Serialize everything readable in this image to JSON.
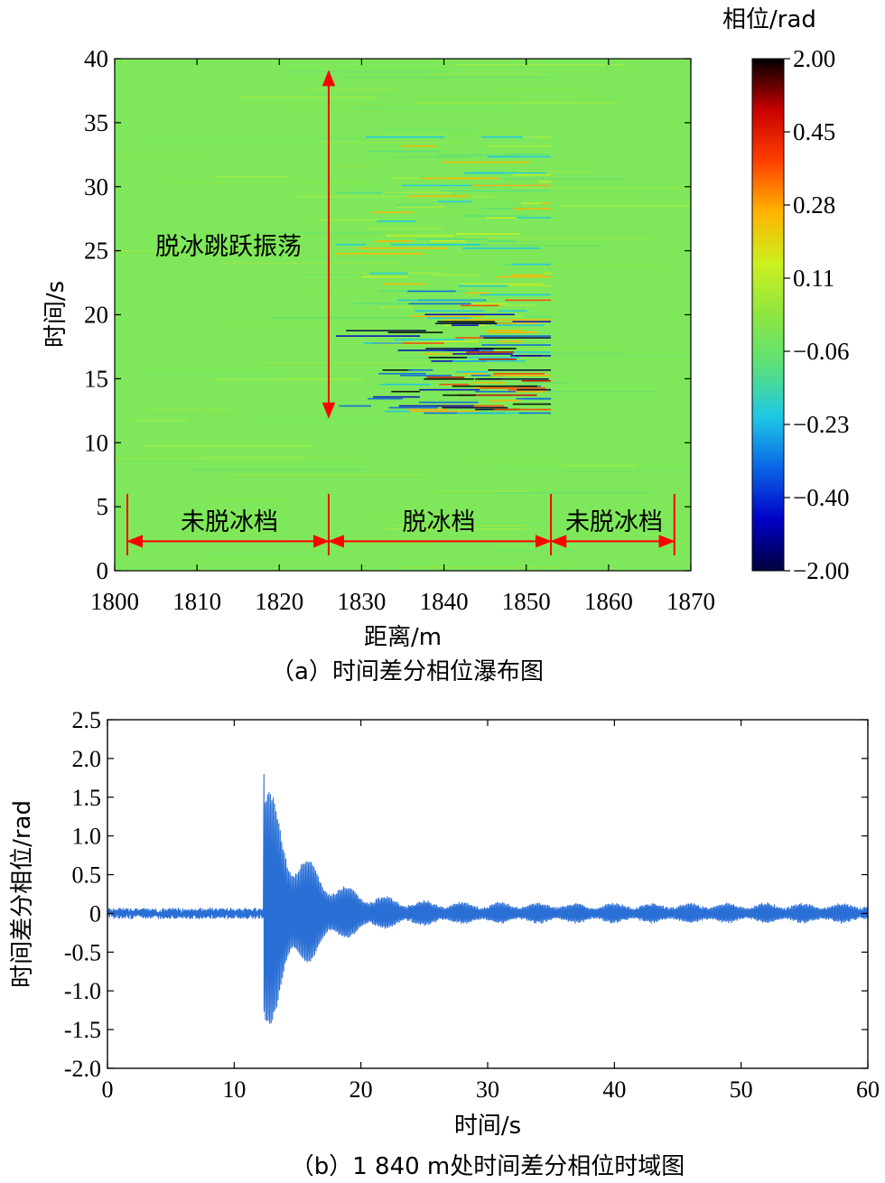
{
  "chart_data": [
    {
      "type": "heatmap",
      "caption": "（a）时间差分相位瀑布图",
      "xlabel": "距离/m",
      "ylabel": "时间/s",
      "xlim": [
        1800,
        1870
      ],
      "ylim": [
        0,
        40
      ],
      "x_ticks": [
        "1800",
        "1810",
        "1820",
        "1830",
        "1840",
        "1850",
        "1860",
        "1870"
      ],
      "y_ticks": [
        "0",
        "5",
        "10",
        "15",
        "20",
        "25",
        "30",
        "35",
        "40"
      ],
      "colorbar": {
        "title": "相位/rad",
        "tick_labels": [
          "2.00",
          "0.45",
          "0.28",
          "0.11",
          "−0.06",
          "−0.23",
          "−0.40",
          "−2.00"
        ],
        "colors": [
          "#00003c",
          "#0000c8",
          "#0a64e6",
          "#1ec8e6",
          "#5ae07a",
          "#8ee640",
          "#ccf01e",
          "#ffb400",
          "#ff4000",
          "#c80000",
          "#000000"
        ]
      },
      "background_color": "#7ee85a",
      "annotations": {
        "vertical_label": "脱冰跳跃振荡",
        "segments": [
          "未脱冰档",
          "脱冰档",
          "未脱冰档"
        ],
        "segment_x": [
          1800,
          1826,
          1853,
          1868
        ],
        "vertical_arrow_x": 1826,
        "vertical_arrow_y": [
          12,
          39
        ],
        "arrow_color": "#ff0000"
      },
      "disturbance": {
        "x_range": [
          1826.5,
          1853
        ],
        "y_range": [
          12.3,
          34
        ],
        "strong_x_range": [
          1832,
          1853
        ],
        "strong_y_range": [
          12.3,
          22
        ]
      }
    },
    {
      "type": "line",
      "caption": "（b）1 840 m处时间差分相位时域图",
      "xlabel": "时间/s",
      "ylabel": "时间差分相位/rad",
      "xlim": [
        0,
        60
      ],
      "ylim": [
        -2.0,
        2.5
      ],
      "x_ticks": [
        "0",
        "10",
        "20",
        "30",
        "40",
        "50",
        "60"
      ],
      "y_ticks": [
        "-2.0",
        "-1.5",
        "-1.0",
        "-0.5",
        "0",
        "0.5",
        "1.0",
        "1.5",
        "2.0",
        "2.5"
      ],
      "series": [
        {
          "color": "#2a6fd6",
          "baseline_amplitude": 0.06,
          "event_start": 12.3,
          "event_peak_max": 1.87,
          "event_peak_min": -1.72,
          "tail_amplitude": 0.12
        }
      ]
    }
  ]
}
